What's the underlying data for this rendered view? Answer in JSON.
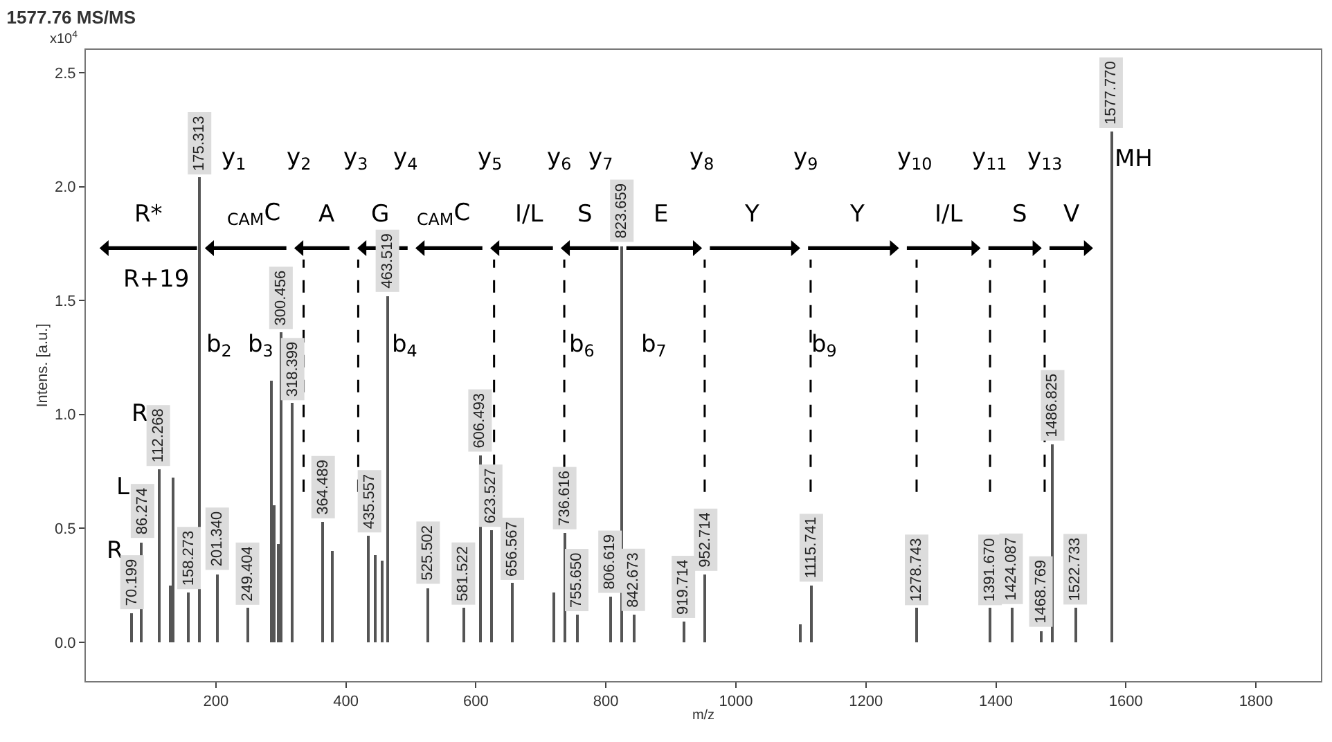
{
  "chart_data": {
    "type": "bar",
    "title": "1577.76 MS/MS",
    "xlabel": "m/z",
    "ylabel": "Intens. [a.u.]",
    "x": [
      70.199,
      86.274,
      112.268,
      130,
      135,
      158.273,
      175.313,
      201.34,
      249.404,
      285,
      290,
      296,
      300.456,
      318.399,
      364.489,
      380,
      435.557,
      445,
      455,
      463.519,
      525.502,
      581.522,
      606.493,
      623.527,
      656.567,
      720,
      736.616,
      755.65,
      806.619,
      823.659,
      842.673,
      919.714,
      952.714,
      1100,
      1115.741,
      1278.743,
      1391.67,
      1424.087,
      1468.769,
      1486.825,
      1522.733,
      1577.77
    ],
    "values": [
      0.13,
      0.44,
      0.76,
      0.25,
      0.72,
      0.22,
      2.04,
      0.3,
      0.15,
      1.15,
      0.6,
      0.43,
      1.36,
      1.05,
      0.53,
      0.4,
      0.47,
      0.38,
      0.36,
      1.52,
      0.24,
      0.15,
      0.82,
      0.49,
      0.26,
      0.22,
      0.48,
      0.12,
      0.2,
      1.74,
      0.12,
      0.09,
      0.3,
      0.08,
      0.25,
      0.15,
      0.15,
      0.15,
      0.05,
      0.87,
      0.15,
      2.24
    ],
    "color": "#555555",
    "xlim": [
      0,
      1900
    ],
    "xticks": [
      200,
      400,
      600,
      800,
      1000,
      1200,
      1400,
      1600,
      1800
    ],
    "ylim": [
      -0.17,
      2.6
    ],
    "yticks": [
      {
        "value": 0,
        "label": "0.0"
      },
      {
        "value": 0.5,
        "label": "0.5"
      },
      {
        "value": 1,
        "label": "1.0"
      },
      {
        "value": 1.5,
        "label": "1.5"
      },
      {
        "value": 2,
        "label": "2.0"
      },
      {
        "value": 2.5,
        "label": "2.5"
      }
    ],
    "ref_lines": [
      {
        "axis": "x",
        "value": 335,
        "line_style": "dashed",
        "color": "#000000"
      },
      {
        "axis": "x",
        "value": 419,
        "line_style": "dashed",
        "color": "#000000"
      },
      {
        "axis": "x",
        "value": 628,
        "line_style": "dashed",
        "color": "#000000"
      },
      {
        "axis": "x",
        "value": 736,
        "line_style": "dashed",
        "color": "#000000"
      },
      {
        "axis": "x",
        "value": 952,
        "line_style": "dashed",
        "color": "#000000"
      },
      {
        "axis": "x",
        "value": 1115,
        "line_style": "dashed",
        "color": "#000000"
      },
      {
        "axis": "x",
        "value": 1278,
        "line_style": "dashed",
        "color": "#000000"
      },
      {
        "axis": "x",
        "value": 1391,
        "line_style": "dashed",
        "color": "#000000"
      },
      {
        "axis": "x",
        "value": 1475,
        "line_style": "dashed",
        "color": "#000000"
      }
    ],
    "annotations": [
      "x10$^{4}$",
      "R*",
      "$_{CAM}$C",
      "A",
      "G",
      "$_{CAM}$C",
      "I/L",
      "S",
      "E",
      "Y",
      "Y",
      "I/L",
      "S",
      "V",
      "y$_{1}$",
      "y$_{2}$",
      "y$_{3}$",
      "y$_{4}$",
      "y$_{5}$",
      "y$_{6}$",
      "y$_{7}$",
      "y$_{8}$",
      "y$_{9}$",
      "y$_{10}$",
      "y$_{11}$",
      "y$_{13}$",
      "MH",
      "R+19",
      "b$_{2}$",
      "b$_{3}$",
      "b$_{4}$",
      "b$_{6}$",
      "b$_{7}$",
      "b$_{9}$",
      "R",
      "L",
      "R",
      {
        "text": "70.199",
        "x": 70.199,
        "y": 0.13
      },
      {
        "text": "86.274",
        "x": 86.274,
        "y": 0.44
      },
      {
        "text": "112.268",
        "x": 112.268,
        "y": 0.76
      },
      {
        "text": "158.273",
        "x": 158.273,
        "y": 0.22
      },
      {
        "text": "175.313",
        "x": 175.313,
        "y": 2.04
      },
      {
        "text": "201.340",
        "x": 201.34,
        "y": 0.3
      },
      {
        "text": "249.404",
        "x": 249.404,
        "y": 0.15
      },
      {
        "text": "300.456",
        "x": 300.456,
        "y": 1.36
      },
      {
        "text": "318.399",
        "x": 318.399,
        "y": 1.05
      },
      {
        "text": "364.489",
        "x": 364.489,
        "y": 0.53
      },
      {
        "text": "435.557",
        "x": 435.557,
        "y": 0.47
      },
      {
        "text": "463.519",
        "x": 463.519,
        "y": 1.52
      },
      {
        "text": "525.502",
        "x": 525.502,
        "y": 0.24
      },
      {
        "text": "581.522",
        "x": 581.522,
        "y": 0.15
      },
      {
        "text": "606.493",
        "x": 606.493,
        "y": 0.82
      },
      {
        "text": "623.527",
        "x": 623.527,
        "y": 0.49
      },
      {
        "text": "656.567",
        "x": 656.567,
        "y": 0.26
      },
      {
        "text": "736.616",
        "x": 736.616,
        "y": 0.48
      },
      {
        "text": "755.650",
        "x": 755.65,
        "y": 0.12
      },
      {
        "text": "806.619",
        "x": 806.619,
        "y": 0.2
      },
      {
        "text": "823.659",
        "x": 823.659,
        "y": 1.74
      },
      {
        "text": "842.673",
        "x": 842.673,
        "y": 0.12
      },
      {
        "text": "919.714",
        "x": 919.714,
        "y": 0.09
      },
      {
        "text": "952.714",
        "x": 952.714,
        "y": 0.3
      },
      {
        "text": "1115.741",
        "x": 1115.741,
        "y": 0.25
      },
      {
        "text": "1278.743",
        "x": 1278.743,
        "y": 0.15
      },
      {
        "text": "1391.670",
        "x": 1391.67,
        "y": 0.15
      },
      {
        "text": "1424.087",
        "x": 1424.087,
        "y": 0.15
      },
      {
        "text": "1468.769",
        "x": 1468.769,
        "y": 0.05
      },
      {
        "text": "1486.825",
        "x": 1486.825,
        "y": 0.87
      },
      {
        "text": "1522.733",
        "x": 1522.733,
        "y": 0.15
      },
      {
        "text": "1577.770",
        "x": 1577.77,
        "y": 2.24
      }
    ]
  }
}
